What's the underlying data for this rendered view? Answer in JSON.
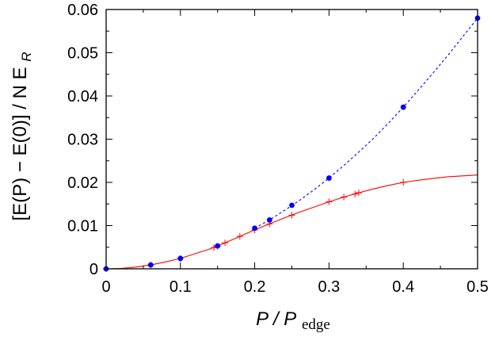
{
  "chart_data": {
    "type": "scatter",
    "xlabel": {
      "main": "P / P",
      "sub": "edge"
    },
    "ylabel": {
      "open": "[E(P) − E(0)] / N E",
      "sub": "R"
    },
    "xlim": [
      0,
      0.5
    ],
    "ylim": [
      0,
      0.06
    ],
    "x_ticks": [
      "0",
      "0.1",
      "0.2",
      "0.3",
      "0.4",
      "0.5"
    ],
    "y_ticks": [
      "0",
      "0.01",
      "0.02",
      "0.03",
      "0.04",
      "0.05",
      "0.06"
    ],
    "x_tick_values": [
      0,
      0.1,
      0.2,
      0.3,
      0.4,
      0.5
    ],
    "y_tick_values": [
      0,
      0.01,
      0.02,
      0.03,
      0.04,
      0.05,
      0.06
    ],
    "grid": false,
    "series": [
      {
        "color": "#ff0000",
        "marker": "plus",
        "line": "solid",
        "points": [
          [
            0,
            0
          ],
          [
            0.06,
            0.0009
          ],
          [
            0.1,
            0.0024
          ],
          [
            0.145,
            0.0049
          ],
          [
            0.15,
            0.0052
          ],
          [
            0.16,
            0.006
          ],
          [
            0.18,
            0.0075
          ],
          [
            0.2,
            0.009
          ],
          [
            0.22,
            0.0104
          ],
          [
            0.25,
            0.0124
          ],
          [
            0.3,
            0.0155
          ],
          [
            0.32,
            0.0166
          ],
          [
            0.335,
            0.0173
          ],
          [
            0.34,
            0.0176
          ],
          [
            0.4,
            0.02
          ]
        ],
        "curve": [
          [
            0,
            0
          ],
          [
            0.02,
            0.0001
          ],
          [
            0.04,
            0.0004
          ],
          [
            0.06,
            0.0009
          ],
          [
            0.08,
            0.0016
          ],
          [
            0.1,
            0.0024
          ],
          [
            0.12,
            0.0035
          ],
          [
            0.14,
            0.0046
          ],
          [
            0.16,
            0.006
          ],
          [
            0.18,
            0.0075
          ],
          [
            0.2,
            0.009
          ],
          [
            0.22,
            0.0104
          ],
          [
            0.24,
            0.0118
          ],
          [
            0.26,
            0.0131
          ],
          [
            0.28,
            0.0143
          ],
          [
            0.3,
            0.0155
          ],
          [
            0.32,
            0.0166
          ],
          [
            0.34,
            0.0176
          ],
          [
            0.36,
            0.0185
          ],
          [
            0.38,
            0.0193
          ],
          [
            0.4,
            0.02
          ],
          [
            0.42,
            0.0205
          ],
          [
            0.44,
            0.0209
          ],
          [
            0.46,
            0.0213
          ],
          [
            0.48,
            0.0215
          ],
          [
            0.5,
            0.0217
          ]
        ]
      },
      {
        "color": "#0000ff",
        "marker": "circle",
        "line": "dashed",
        "points": [
          [
            0,
            0
          ],
          [
            0.06,
            0.0009
          ],
          [
            0.1,
            0.0024
          ],
          [
            0.15,
            0.0053
          ],
          [
            0.2,
            0.0094
          ],
          [
            0.22,
            0.0113
          ],
          [
            0.25,
            0.0147
          ],
          [
            0.3,
            0.021
          ],
          [
            0.4,
            0.0374
          ],
          [
            0.5,
            0.058
          ]
        ],
        "curve": [
          [
            0.2,
            0.0094
          ],
          [
            0.22,
            0.0113
          ],
          [
            0.24,
            0.0135
          ],
          [
            0.26,
            0.0158
          ],
          [
            0.28,
            0.0183
          ],
          [
            0.3,
            0.021
          ],
          [
            0.32,
            0.0239
          ],
          [
            0.34,
            0.027
          ],
          [
            0.36,
            0.0302
          ],
          [
            0.38,
            0.0337
          ],
          [
            0.4,
            0.0374
          ],
          [
            0.42,
            0.0413
          ],
          [
            0.44,
            0.0453
          ],
          [
            0.46,
            0.0494
          ],
          [
            0.48,
            0.0537
          ],
          [
            0.5,
            0.058
          ]
        ]
      }
    ]
  }
}
